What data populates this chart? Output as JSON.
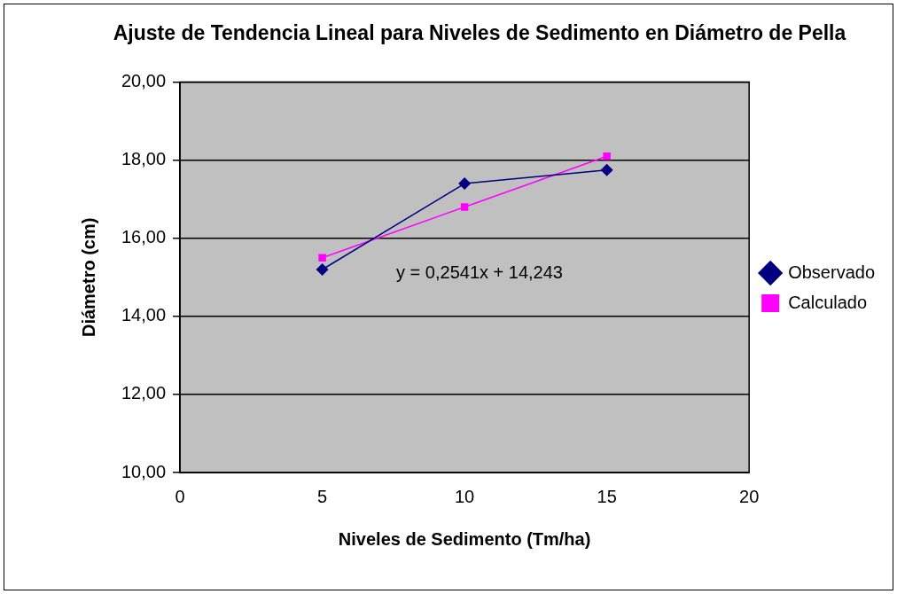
{
  "chart_data": {
    "type": "line",
    "title": "Ajuste de Tendencia Lineal para Niveles de Sedimento en Diámetro de Pella",
    "xlabel": "Niveles de Sedimento (Tm/ha)",
    "ylabel": "Diámetro (cm)",
    "x": [
      5,
      10,
      15
    ],
    "series": [
      {
        "name": "Observado",
        "color": "#000080",
        "marker": "diamond",
        "values": [
          15.2,
          17.4,
          17.75
        ]
      },
      {
        "name": "Calculado",
        "color": "#ff00ff",
        "marker": "square",
        "values": [
          15.5,
          16.8,
          18.1
        ]
      }
    ],
    "xlim": [
      0,
      20
    ],
    "xticks": [
      0,
      5,
      10,
      15,
      20
    ],
    "ylim": [
      10,
      20
    ],
    "yticks": [
      {
        "value": 10,
        "label": "10,00"
      },
      {
        "value": 12,
        "label": "12,00"
      },
      {
        "value": 14,
        "label": "14,00"
      },
      {
        "value": 16,
        "label": "16,00"
      },
      {
        "value": 18,
        "label": "18,00"
      },
      {
        "value": 20,
        "label": "20,00"
      }
    ],
    "annotations": [
      "y = 0,2541x + 14,243"
    ],
    "grid": "y",
    "legend": "right"
  }
}
